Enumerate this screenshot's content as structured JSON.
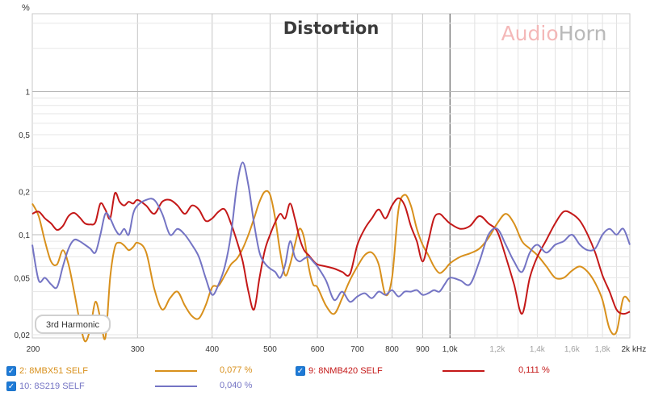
{
  "chart_data": {
    "type": "line",
    "title": "Distortion",
    "ylabel": "%",
    "xunit": "kHz",
    "badge": "3rd Harmonic",
    "brand": {
      "part1": "Audio",
      "part2": "Horn",
      "color1": "#f4b8b8",
      "color2": "#b9b9b9"
    },
    "x_scale": "log",
    "y_scale": "log",
    "xlim": [
      200,
      2000
    ],
    "ylim": [
      0.019,
      3.5
    ],
    "x_ticks": [
      {
        "v": 200,
        "label": "200"
      },
      {
        "v": 300,
        "label": "300"
      },
      {
        "v": 400,
        "label": "400"
      },
      {
        "v": 500,
        "label": "500"
      },
      {
        "v": 600,
        "label": "600"
      },
      {
        "v": 700,
        "label": "700"
      },
      {
        "v": 800,
        "label": "800"
      },
      {
        "v": 900,
        "label": "900"
      },
      {
        "v": 1000,
        "label": "1,0k"
      },
      {
        "v": 1200,
        "label": "1,2k"
      },
      {
        "v": 1400,
        "label": "1,4k"
      },
      {
        "v": 1600,
        "label": "1,6k"
      },
      {
        "v": 1800,
        "label": "1,8k"
      },
      {
        "v": 2000,
        "label": "2k"
      }
    ],
    "y_ticks": [
      {
        "v": 0.02,
        "label": "0,02"
      },
      {
        "v": 0.05,
        "label": "0,05"
      },
      {
        "v": 0.1,
        "label": "0,1"
      },
      {
        "v": 0.2,
        "label": "0,2"
      },
      {
        "v": 0.5,
        "label": "0,5"
      },
      {
        "v": 1,
        "label": "1"
      }
    ],
    "grid": true,
    "series": [
      {
        "name": "2: 8MBX51 SELF",
        "color": "#d8901c",
        "value": "0,077 %",
        "x": [
          200,
          205,
          210,
          215,
          220,
          225,
          230,
          235,
          240,
          245,
          250,
          255,
          260,
          265,
          270,
          275,
          280,
          285,
          290,
          295,
          300,
          310,
          320,
          330,
          340,
          350,
          360,
          370,
          380,
          390,
          400,
          410,
          420,
          430,
          440,
          450,
          460,
          470,
          480,
          490,
          500,
          510,
          520,
          530,
          540,
          550,
          560,
          570,
          580,
          590,
          600,
          620,
          640,
          660,
          680,
          700,
          720,
          740,
          760,
          780,
          800,
          820,
          840,
          860,
          880,
          900,
          920,
          940,
          960,
          980,
          1000,
          1040,
          1080,
          1120,
          1160,
          1200,
          1240,
          1280,
          1320,
          1360,
          1400,
          1450,
          1500,
          1550,
          1600,
          1650,
          1700,
          1750,
          1800,
          1850,
          1900,
          1950,
          2000
        ],
        "y": [
          0.165,
          0.135,
          0.09,
          0.065,
          0.062,
          0.078,
          0.062,
          0.04,
          0.025,
          0.018,
          0.022,
          0.034,
          0.026,
          0.019,
          0.05,
          0.082,
          0.088,
          0.084,
          0.078,
          0.082,
          0.088,
          0.076,
          0.042,
          0.03,
          0.036,
          0.04,
          0.032,
          0.027,
          0.026,
          0.032,
          0.043,
          0.044,
          0.052,
          0.062,
          0.068,
          0.08,
          0.1,
          0.13,
          0.17,
          0.2,
          0.19,
          0.13,
          0.075,
          0.052,
          0.062,
          0.085,
          0.11,
          0.095,
          0.06,
          0.045,
          0.043,
          0.032,
          0.028,
          0.036,
          0.048,
          0.06,
          0.072,
          0.075,
          0.062,
          0.038,
          0.05,
          0.15,
          0.19,
          0.16,
          0.11,
          0.085,
          0.072,
          0.06,
          0.054,
          0.057,
          0.063,
          0.07,
          0.074,
          0.08,
          0.095,
          0.12,
          0.14,
          0.12,
          0.09,
          0.08,
          0.072,
          0.06,
          0.05,
          0.05,
          0.056,
          0.06,
          0.055,
          0.046,
          0.035,
          0.022,
          0.021,
          0.036,
          0.034
        ]
      },
      {
        "name": "9: 8NMB420 SELF",
        "color": "#c41818",
        "value": "0,111 %",
        "x": [
          200,
          205,
          210,
          215,
          220,
          225,
          230,
          235,
          240,
          245,
          250,
          255,
          260,
          265,
          270,
          275,
          280,
          285,
          290,
          295,
          300,
          310,
          320,
          330,
          340,
          350,
          360,
          370,
          380,
          390,
          400,
          410,
          420,
          430,
          440,
          450,
          460,
          470,
          480,
          490,
          500,
          510,
          520,
          530,
          540,
          550,
          560,
          570,
          580,
          590,
          600,
          620,
          640,
          660,
          680,
          700,
          720,
          740,
          760,
          780,
          800,
          820,
          840,
          860,
          880,
          900,
          920,
          940,
          960,
          980,
          1000,
          1040,
          1080,
          1120,
          1160,
          1200,
          1240,
          1280,
          1320,
          1360,
          1400,
          1450,
          1500,
          1550,
          1600,
          1650,
          1700,
          1750,
          1800,
          1850,
          1900,
          1950,
          2000
        ],
        "y": [
          0.14,
          0.145,
          0.13,
          0.12,
          0.108,
          0.115,
          0.135,
          0.142,
          0.132,
          0.12,
          0.118,
          0.122,
          0.165,
          0.15,
          0.13,
          0.195,
          0.17,
          0.16,
          0.17,
          0.165,
          0.175,
          0.16,
          0.14,
          0.17,
          0.175,
          0.16,
          0.14,
          0.16,
          0.15,
          0.125,
          0.13,
          0.145,
          0.15,
          0.12,
          0.09,
          0.065,
          0.04,
          0.03,
          0.05,
          0.078,
          0.1,
          0.122,
          0.14,
          0.13,
          0.165,
          0.13,
          0.095,
          0.078,
          0.072,
          0.066,
          0.062,
          0.06,
          0.058,
          0.055,
          0.053,
          0.085,
          0.11,
          0.13,
          0.15,
          0.13,
          0.16,
          0.18,
          0.16,
          0.115,
          0.09,
          0.065,
          0.09,
          0.13,
          0.14,
          0.13,
          0.12,
          0.11,
          0.115,
          0.135,
          0.12,
          0.105,
          0.07,
          0.045,
          0.028,
          0.05,
          0.07,
          0.092,
          0.12,
          0.145,
          0.14,
          0.125,
          0.1,
          0.075,
          0.052,
          0.04,
          0.03,
          0.028,
          0.029
        ]
      },
      {
        "name": "10: 8S219 SELF",
        "color": "#7474c4",
        "value": "0,040 %",
        "x": [
          200,
          205,
          210,
          215,
          220,
          225,
          230,
          235,
          240,
          245,
          250,
          255,
          260,
          265,
          270,
          275,
          280,
          285,
          290,
          295,
          300,
          310,
          320,
          330,
          340,
          350,
          360,
          370,
          380,
          390,
          400,
          410,
          420,
          430,
          440,
          450,
          460,
          470,
          480,
          490,
          500,
          510,
          520,
          530,
          540,
          550,
          560,
          570,
          580,
          590,
          600,
          620,
          640,
          660,
          680,
          700,
          720,
          740,
          760,
          780,
          800,
          820,
          840,
          860,
          880,
          900,
          920,
          940,
          960,
          980,
          1000,
          1040,
          1080,
          1120,
          1160,
          1200,
          1240,
          1280,
          1320,
          1360,
          1400,
          1450,
          1500,
          1550,
          1600,
          1650,
          1700,
          1750,
          1800,
          1850,
          1900,
          1950,
          2000
        ],
        "y": [
          0.085,
          0.048,
          0.05,
          0.045,
          0.043,
          0.06,
          0.08,
          0.092,
          0.09,
          0.085,
          0.08,
          0.075,
          0.1,
          0.14,
          0.13,
          0.11,
          0.1,
          0.11,
          0.1,
          0.14,
          0.16,
          0.175,
          0.175,
          0.14,
          0.1,
          0.11,
          0.1,
          0.085,
          0.07,
          0.05,
          0.038,
          0.045,
          0.06,
          0.1,
          0.22,
          0.32,
          0.22,
          0.12,
          0.075,
          0.063,
          0.058,
          0.055,
          0.05,
          0.062,
          0.09,
          0.07,
          0.065,
          0.068,
          0.07,
          0.065,
          0.06,
          0.048,
          0.035,
          0.04,
          0.034,
          0.037,
          0.039,
          0.036,
          0.04,
          0.038,
          0.041,
          0.037,
          0.04,
          0.04,
          0.041,
          0.038,
          0.039,
          0.041,
          0.04,
          0.045,
          0.05,
          0.048,
          0.045,
          0.065,
          0.1,
          0.11,
          0.085,
          0.065,
          0.055,
          0.075,
          0.085,
          0.075,
          0.085,
          0.09,
          0.1,
          0.085,
          0.078,
          0.08,
          0.1,
          0.11,
          0.1,
          0.11,
          0.085
        ]
      }
    ]
  }
}
